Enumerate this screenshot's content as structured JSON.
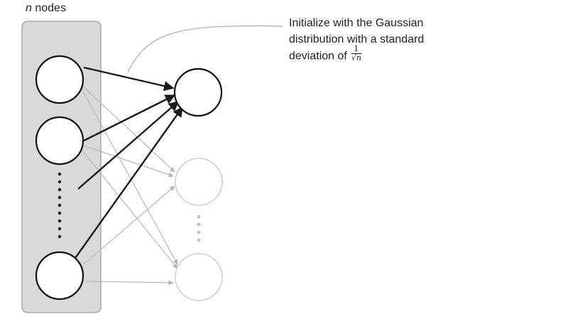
{
  "input_layer": {
    "count_variable": "n",
    "count_suffix": " nodes"
  },
  "annotation": {
    "line1": "Initialize with the Gaussian",
    "line2": "distribution with a standard",
    "line3_prefix": "deviation of",
    "fraction_numerator": "1",
    "fraction_denominator": "√n"
  },
  "colors": {
    "panel_fill": "#d9d9d9",
    "strong_edge": "#1a1a1a",
    "faint_edge": "#b0b0b0"
  }
}
